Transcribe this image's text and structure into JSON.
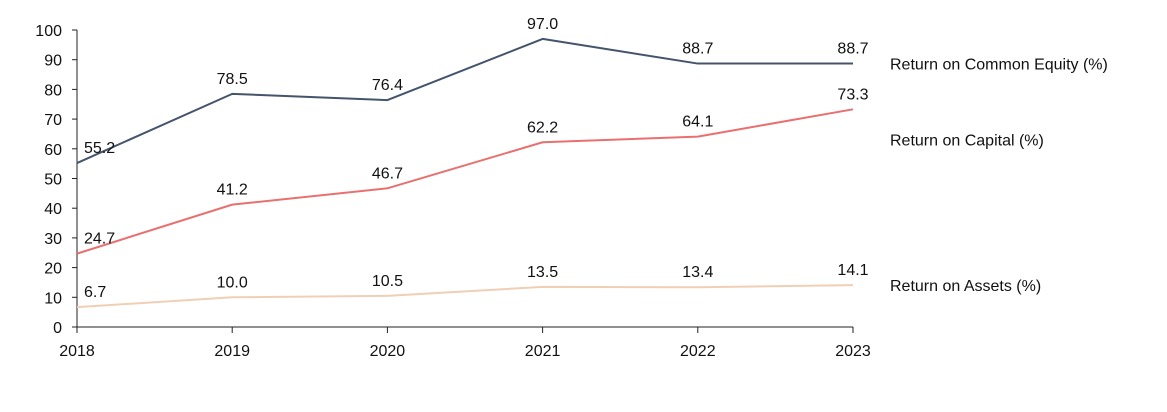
{
  "chart_data": {
    "type": "line",
    "title": "",
    "xlabel": "",
    "ylabel": "",
    "categories": [
      "2018",
      "2019",
      "2020",
      "2021",
      "2022",
      "2023"
    ],
    "ylim": [
      0,
      100
    ],
    "yticks": [
      "0",
      "10",
      "20",
      "30",
      "40",
      "50",
      "60",
      "70",
      "80",
      "90",
      "100"
    ],
    "grid": false,
    "legend_placement": "right, labels at line ends",
    "series": [
      {
        "name": "Return on Common Equity (%)",
        "values": [
          55.2,
          78.5,
          76.4,
          97.0,
          88.7,
          88.7
        ],
        "labels": [
          "55.2",
          "78.5",
          "76.4",
          "97.0",
          "88.7",
          "88.7"
        ],
        "color": "#44546a"
      },
      {
        "name": "Return on Capital (%)",
        "values": [
          24.7,
          41.2,
          46.7,
          62.2,
          64.1,
          73.3
        ],
        "labels": [
          "24.7",
          "41.2",
          "46.7",
          "62.2",
          "64.1",
          "73.3"
        ],
        "color": "#e8706f"
      },
      {
        "name": "Return on Assets (%)",
        "values": [
          6.7,
          10.0,
          10.5,
          13.5,
          13.4,
          14.1
        ],
        "labels": [
          "6.7",
          "10.0",
          "10.5",
          "13.5",
          "13.4",
          "14.1"
        ],
        "color": "#f1cfb5"
      }
    ]
  }
}
